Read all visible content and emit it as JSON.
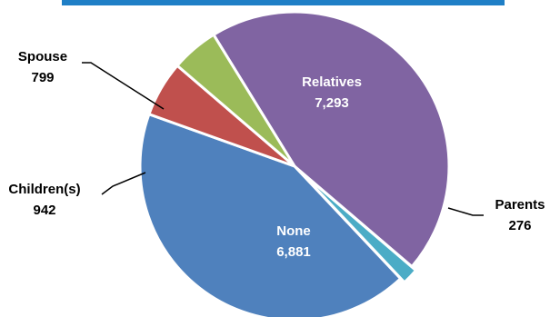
{
  "chart_data": {
    "type": "pie",
    "title": "",
    "slices": [
      {
        "label": "Relatives",
        "display_value": "7,293",
        "value": 7293,
        "color": "#8064A2",
        "label_placement": "inside"
      },
      {
        "label": "Parents",
        "display_value": "276",
        "value": 276,
        "color": "#4BACC6",
        "label_placement": "outside-leader"
      },
      {
        "label": "None",
        "display_value": "6,881",
        "value": 6881,
        "color": "#4F81BD",
        "label_placement": "inside"
      },
      {
        "label": "Children(s)",
        "display_value": "942",
        "value": 942,
        "color": "#C0504D",
        "label_placement": "outside-leader"
      },
      {
        "label": "Spouse",
        "display_value": "799",
        "value": 799,
        "color": "#9BBB59",
        "label_placement": "outside-leader"
      }
    ],
    "top_bar_color": "#1F7FC6"
  }
}
